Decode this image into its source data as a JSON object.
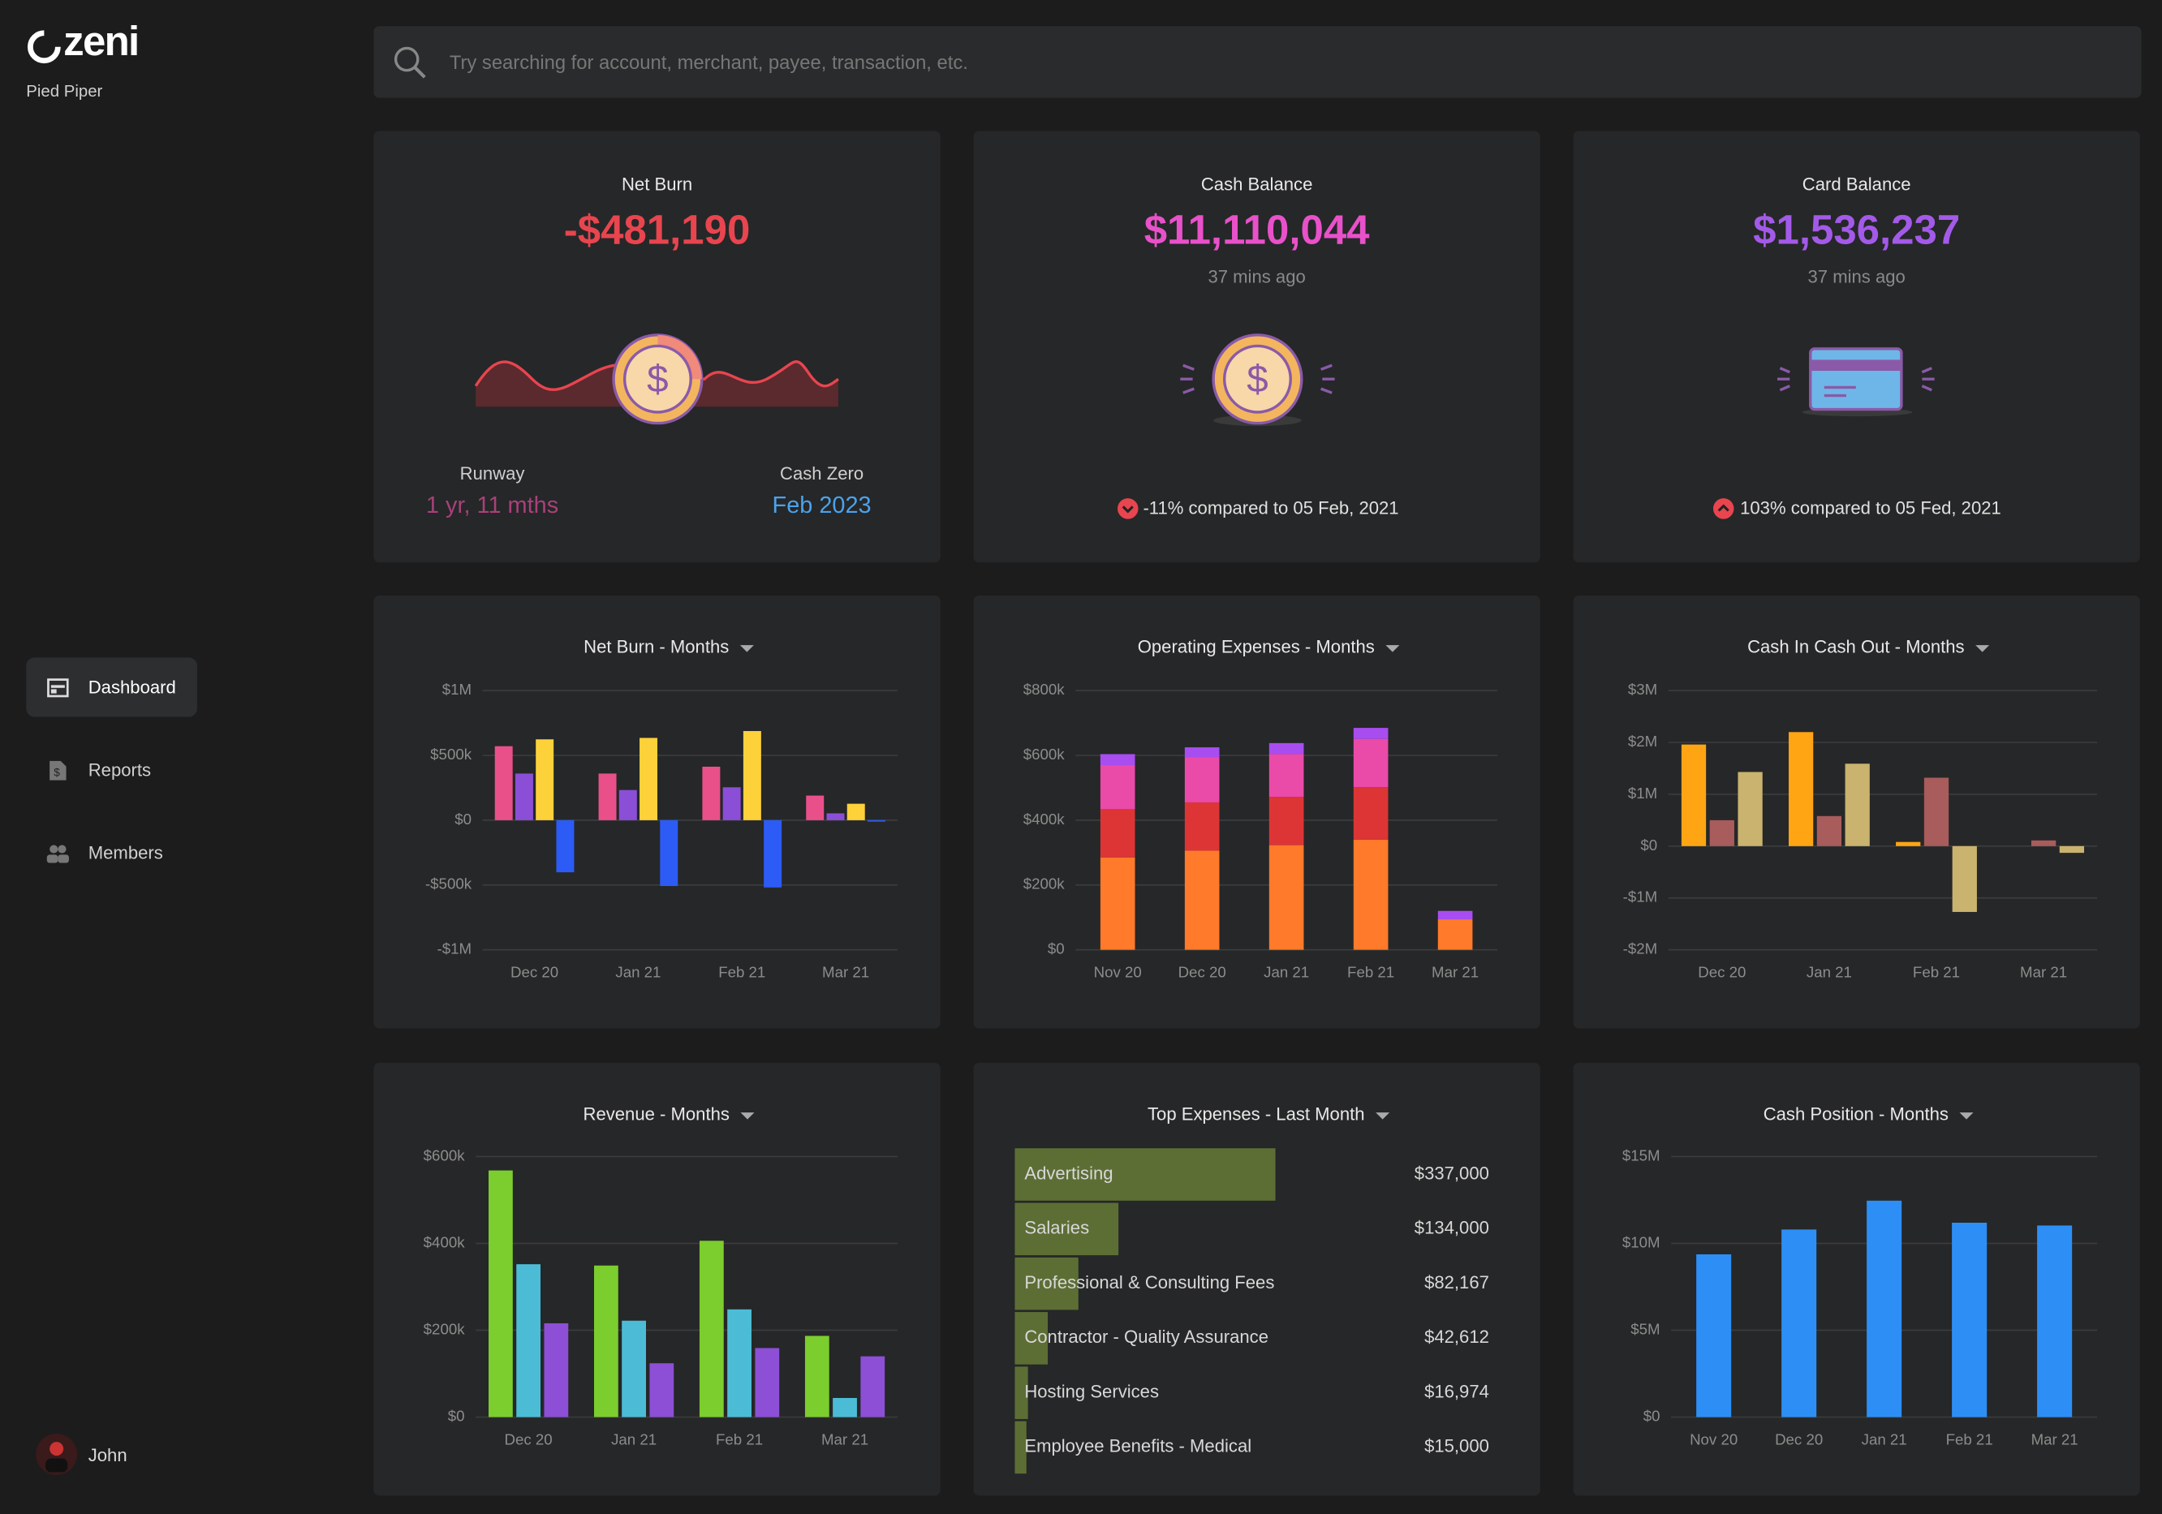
{
  "brand": {
    "logo": "zeni",
    "company": "Pied Piper"
  },
  "search_placeholder": "Try searching for account, merchant, payee, transaction, etc.",
  "nav": [
    "Dashboard",
    "Reports",
    "Members"
  ],
  "user": "John",
  "cards": [
    {
      "title": "Net Burn",
      "value": "-$481,190",
      "runway_label": "Runway",
      "runway_value": "1 yr, 11 mths",
      "cash_zero_label": "Cash Zero",
      "cash_zero_value": "Feb 2023"
    },
    {
      "title": "Cash Balance",
      "value": "$11,110,044",
      "updated": "37 mins ago",
      "comparison": "-11% compared to 05 Feb, 2021"
    },
    {
      "title": "Card Balance",
      "value": "$1,536,237",
      "updated": "37 mins ago",
      "comparison": "103% compared to 05 Fed, 2021"
    }
  ],
  "chart_data": [
    {
      "type": "bar",
      "title": "Net Burn - Months",
      "categories": [
        "Dec 20",
        "Jan 21",
        "Feb 21",
        "Mar 21"
      ],
      "series": [
        {
          "color": "#e9508a",
          "values": [
            571000,
            360000,
            413000,
            190000
          ]
        },
        {
          "color": "#8a4fd6",
          "values": [
            360000,
            233000,
            254000,
            53000
          ]
        },
        {
          "color": "#fdd13a",
          "values": [
            624000,
            635000,
            688000,
            127000
          ]
        },
        {
          "color": "#2c5cf5",
          "values": [
            -402000,
            -508000,
            -519000,
            -11000
          ]
        }
      ],
      "ylim": [
        -1000000,
        1000000
      ],
      "yticks": [
        {
          "value": 1000000,
          "label": "$1M"
        },
        {
          "value": 500000,
          "label": "$500k"
        },
        {
          "value": 0,
          "label": "$0"
        },
        {
          "value": -500000,
          "label": "-$500k"
        },
        {
          "value": -1000000,
          "label": "-$1M"
        }
      ],
      "grid": true
    },
    {
      "type": "bar",
      "stacked": true,
      "title": "Operating Expenses - Months",
      "categories": [
        "Nov 20",
        "Dec 20",
        "Jan 21",
        "Feb 21",
        "Mar 21"
      ],
      "series": [
        {
          "color": "#ff7a2a",
          "values": [
            285000,
            306000,
            323000,
            340000,
            94000
          ]
        },
        {
          "color": "#dd3535",
          "values": [
            149000,
            149000,
            149000,
            162000,
            0
          ]
        },
        {
          "color": "#ea4aa8",
          "values": [
            136000,
            140000,
            132000,
            149000,
            0
          ]
        },
        {
          "color": "#a84df0",
          "values": [
            34000,
            30000,
            34000,
            34000,
            26000
          ]
        }
      ],
      "ylim": [
        0,
        800000
      ],
      "yticks": [
        {
          "value": 800000,
          "label": "$800k"
        },
        {
          "value": 600000,
          "label": "$600k"
        },
        {
          "value": 400000,
          "label": "$400k"
        },
        {
          "value": 200000,
          "label": "$200k"
        },
        {
          "value": 0,
          "label": "$0"
        }
      ],
      "grid": true
    },
    {
      "type": "bar",
      "title": "Cash In Cash Out - Months",
      "categories": [
        "Dec 20",
        "Jan 21",
        "Feb 21",
        "Mar 21"
      ],
      "series": [
        {
          "color": "#ffa514",
          "values": [
            1960000,
            2200000,
            80000,
            0
          ]
        },
        {
          "color": "#a85c5c",
          "values": [
            500000,
            580000,
            1320000,
            110000
          ]
        },
        {
          "color": "#c9b36e",
          "values": [
            1430000,
            1590000,
            -1270000,
            -130000
          ]
        }
      ],
      "ylim": [
        -2000000,
        3000000
      ],
      "yticks": [
        {
          "value": 3000000,
          "label": "$3M"
        },
        {
          "value": 2000000,
          "label": "$2M"
        },
        {
          "value": 1000000,
          "label": "$1M"
        },
        {
          "value": 0,
          "label": "$0"
        },
        {
          "value": -1000000,
          "label": "-$1M"
        },
        {
          "value": -2000000,
          "label": "-$2M"
        }
      ],
      "grid": true
    },
    {
      "type": "bar",
      "title": "Revenue - Months",
      "categories": [
        "Dec 20",
        "Jan 21",
        "Feb 21",
        "Mar 21"
      ],
      "series": [
        {
          "color": "#7ccd2e",
          "values": [
            568000,
            349000,
            406000,
            187000
          ]
        },
        {
          "color": "#4cbcd6",
          "values": [
            352000,
            222000,
            248000,
            44000
          ]
        },
        {
          "color": "#8c4fd6",
          "values": [
            216000,
            124000,
            159000,
            140000
          ]
        }
      ],
      "ylim": [
        0,
        600000
      ],
      "yticks": [
        {
          "value": 600000,
          "label": "$600k"
        },
        {
          "value": 400000,
          "label": "$400k"
        },
        {
          "value": 200000,
          "label": "$200k"
        },
        {
          "value": 0,
          "label": "$0"
        }
      ],
      "grid": true
    },
    {
      "type": "barh",
      "title": "Top Expenses - Last Month",
      "color": "#5d6e35",
      "categories": [
        "Advertising",
        "Salaries",
        "Professional & Consulting Fees",
        "Contractor - Quality Assurance",
        "Hosting Services",
        "Employee Benefits - Medical"
      ],
      "values": [
        337000,
        134000,
        82167,
        42612,
        16974,
        15000
      ],
      "value_labels": [
        "$337,000",
        "$134,000",
        "$82,167",
        "$42,612",
        "$16,974",
        "$15,000"
      ]
    },
    {
      "type": "bar",
      "title": "Cash Position - Months",
      "categories": [
        "Nov 20",
        "Dec 20",
        "Jan 21",
        "Feb 21",
        "Mar 21"
      ],
      "series": [
        {
          "color": "#2d8ff5",
          "values": [
            9370000,
            10800000,
            12460000,
            11190000,
            11030000
          ]
        }
      ],
      "ylim": [
        0,
        15000000
      ],
      "yticks": [
        {
          "value": 15000000,
          "label": "$15M"
        },
        {
          "value": 10000000,
          "label": "$10M"
        },
        {
          "value": 5000000,
          "label": "$5M"
        },
        {
          "value": 0,
          "label": "$0"
        }
      ],
      "grid": true
    }
  ]
}
